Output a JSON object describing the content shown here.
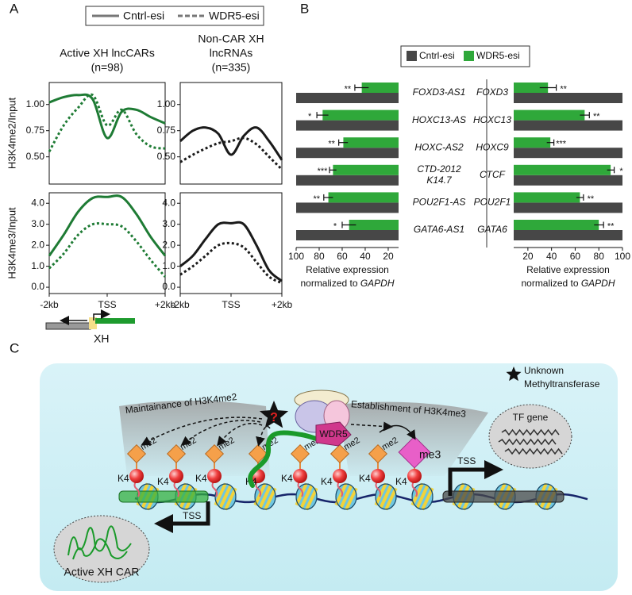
{
  "panel_labels": [
    "A",
    "B",
    "C"
  ],
  "panel_a": {
    "gene_label": "XH"
  },
  "chart_data": [
    {
      "type": "line",
      "title": [
        "Active XH lncCARs",
        "(n=98)"
      ],
      "ylabel": "H3K4me2/Input",
      "x": [
        -2,
        -1.5,
        -1,
        -0.5,
        0,
        0.5,
        1,
        1.5,
        2
      ],
      "xlim": [
        -2,
        2
      ],
      "ylim": [
        0.24,
        1.21
      ],
      "yticks": [
        {
          "value": 0.5,
          "label": "0.50"
        },
        {
          "value": 0.75,
          "label": "0.75"
        },
        {
          "value": 1,
          "label": "1.00"
        }
      ],
      "series": [
        {
          "name": "Cntrl-esi",
          "color": "#1e7b34",
          "dash": "solid",
          "values": [
            1.02,
            1.07,
            1.09,
            1.05,
            0.68,
            0.93,
            0.95,
            0.88,
            0.82
          ]
        },
        {
          "name": "WDR5-esi",
          "color": "#1e7b34",
          "dash": "dashed",
          "values": [
            0.55,
            0.8,
            0.97,
            1.09,
            0.8,
            0.95,
            0.72,
            0.6,
            0.58
          ]
        }
      ]
    },
    {
      "type": "line",
      "title": [
        "Non-CAR XH",
        "lncRNAs",
        "(n=335)"
      ],
      "x": [
        -2,
        -1.5,
        -1,
        -0.5,
        0,
        0.5,
        1,
        1.5,
        2
      ],
      "xlim": [
        -2,
        2
      ],
      "ylim": [
        0.24,
        1.21
      ],
      "yticks": [
        {
          "value": 0.5,
          "label": "0.50"
        },
        {
          "value": 0.75,
          "label": "0.75"
        },
        {
          "value": 1,
          "label": "1.00"
        }
      ],
      "series": [
        {
          "color": "#1a1a1a",
          "dash": "solid",
          "values": [
            0.65,
            0.75,
            0.78,
            0.72,
            0.52,
            0.7,
            0.78,
            0.65,
            0.47
          ]
        },
        {
          "color": "#1a1a1a",
          "dash": "dashed",
          "values": [
            0.45,
            0.52,
            0.58,
            0.63,
            0.65,
            0.68,
            0.62,
            0.5,
            0.38
          ]
        }
      ]
    },
    {
      "type": "line",
      "ylabel": "H3K4me3/Input",
      "x": [
        -2,
        -1.5,
        -1,
        -0.5,
        0,
        0.5,
        1,
        1.5,
        2
      ],
      "xlim": [
        -2,
        2
      ],
      "ylim": [
        -0.3,
        4.5
      ],
      "xticks": [
        {
          "value": -2,
          "label": "-2kb"
        },
        {
          "value": 0,
          "label": "TSS"
        },
        {
          "value": 2,
          "label": "+2kb"
        }
      ],
      "yticks": [
        {
          "value": 0,
          "label": "0.0"
        },
        {
          "value": 1,
          "label": "1.0"
        },
        {
          "value": 2,
          "label": "2.0"
        },
        {
          "value": 3,
          "label": "3.0"
        },
        {
          "value": 4,
          "label": "4.0"
        }
      ],
      "series": [
        {
          "color": "#1e7b34",
          "dash": "solid",
          "values": [
            1.5,
            2.5,
            3.6,
            4.25,
            4.3,
            4.3,
            3.5,
            2.4,
            1.5
          ]
        },
        {
          "color": "#1e7b34",
          "dash": "dashed",
          "values": [
            0.9,
            1.6,
            2.5,
            3.0,
            3.0,
            2.9,
            2.2,
            1.3,
            0.5
          ]
        }
      ]
    },
    {
      "type": "line",
      "x": [
        -2,
        -1.5,
        -1,
        -0.5,
        0,
        0.5,
        1,
        1.5,
        2
      ],
      "xlim": [
        -2,
        2
      ],
      "ylim": [
        -0.3,
        4.5
      ],
      "xticks": [
        {
          "value": -2,
          "label": "-2kb"
        },
        {
          "value": 0,
          "label": "TSS"
        },
        {
          "value": 2,
          "label": "+2kb"
        }
      ],
      "yticks": [
        {
          "value": 0,
          "label": "0.0"
        },
        {
          "value": 1,
          "label": "1.0"
        },
        {
          "value": 2,
          "label": "2.0"
        },
        {
          "value": 3,
          "label": "3.0"
        },
        {
          "value": 4,
          "label": "4.0"
        }
      ],
      "series": [
        {
          "color": "#1a1a1a",
          "dash": "solid",
          "values": [
            1.0,
            1.5,
            2.3,
            3.0,
            3.05,
            3.0,
            2.0,
            0.8,
            0.3
          ]
        },
        {
          "color": "#1a1a1a",
          "dash": "dashed",
          "values": [
            0.6,
            1.0,
            1.5,
            2.0,
            2.1,
            1.9,
            1.2,
            0.5,
            0.2
          ]
        }
      ]
    },
    {
      "type": "barh",
      "categories": [
        [
          "FOXD3-AS1"
        ],
        [
          "HOXC13-AS"
        ],
        [
          "HOXC-AS2"
        ],
        [
          "CTD-2012",
          "K14.7"
        ],
        [
          "POU2F1-AS"
        ],
        [
          "GATA6-AS1"
        ]
      ],
      "xlim": [
        100,
        11
      ],
      "xticks": [
        100,
        80,
        60,
        40,
        20
      ],
      "xlabel": [
        "Relative expression",
        "normalized to ",
        "GAPDH"
      ],
      "series": [
        {
          "name": "Cntrl-esi",
          "color": "#474747",
          "values": [
            100,
            100,
            100,
            100,
            100,
            100
          ]
        },
        {
          "name": "WDR5-esi",
          "color": "#2fa83a",
          "values": [
            43,
            77,
            59,
            68,
            72,
            54
          ],
          "errors": [
            6,
            5,
            4,
            3,
            4,
            6
          ],
          "significance": [
            "**",
            "*",
            "**",
            "***",
            "**",
            "*"
          ]
        }
      ]
    },
    {
      "type": "barh",
      "categories": [
        [
          "FOXD3"
        ],
        [
          "HOXC13"
        ],
        [
          "HOXC9"
        ],
        [
          "CTCF"
        ],
        [
          "POU2F1"
        ],
        [
          "GATA6"
        ]
      ],
      "xlim": [
        8,
        100
      ],
      "xticks": [
        20,
        40,
        60,
        80,
        100
      ],
      "xlabel": [
        "Relative expression",
        "normalized to ",
        "GAPDH"
      ],
      "series": [
        {
          "color": "#474747",
          "values": [
            100,
            100,
            100,
            100,
            100,
            100
          ]
        },
        {
          "color": "#2fa83a",
          "values": [
            37,
            68,
            39,
            90,
            64,
            80
          ],
          "errors": [
            7,
            4,
            3,
            3,
            3,
            4
          ],
          "significance": [
            "**",
            "**",
            "***",
            "*",
            "**",
            "**"
          ]
        }
      ]
    }
  ],
  "diagram": {
    "legend": [
      "Unknown",
      "Methyltransferase"
    ],
    "unknown": "?",
    "maintenance": "Maintainance of H3K4me2",
    "establishment": "Establishment of H3K4me3",
    "complex": "WDR5",
    "mark2": "me2",
    "mark3": "me3",
    "residue": "K4",
    "tss": "TSS",
    "tf_gene": "TF gene",
    "car": "Active XH CAR"
  }
}
